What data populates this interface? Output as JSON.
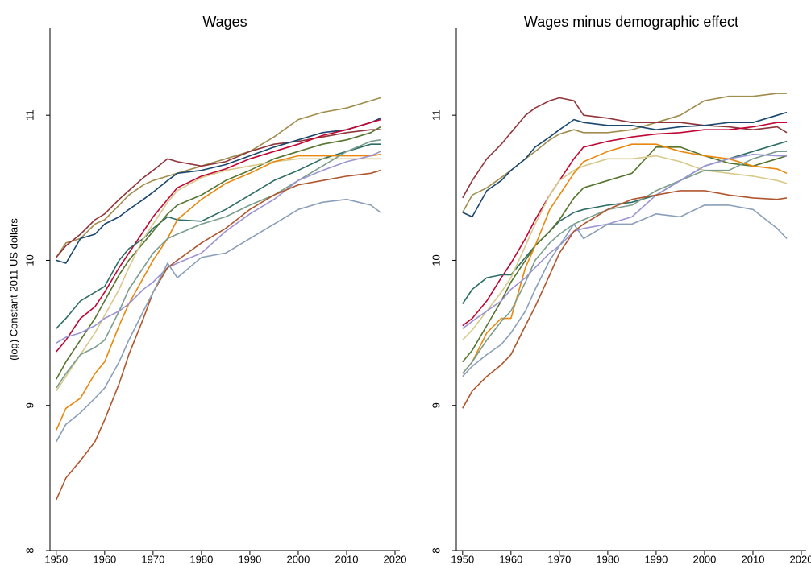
{
  "chart_data": [
    {
      "type": "line",
      "title": "Wages",
      "ylabel": "(log) Constant 2011 US dollars",
      "x": [
        1950,
        1952,
        1955,
        1958,
        1960,
        1963,
        1965,
        1968,
        1970,
        1973,
        1975,
        1980,
        1985,
        1990,
        1995,
        2000,
        2005,
        2010,
        2015,
        2017
      ],
      "xlim": [
        1948.7,
        2021
      ],
      "xticks": [
        1950,
        1960,
        1970,
        1980,
        1990,
        2000,
        2010,
        2020
      ],
      "ylim": [
        8,
        11.6
      ],
      "yticks": [
        8,
        9,
        10,
        11
      ],
      "series": [
        {
          "color": "#a08c4c",
          "values": [
            10.02,
            10.12,
            10.15,
            10.25,
            10.28,
            10.38,
            10.45,
            10.52,
            10.55,
            10.58,
            10.6,
            10.65,
            10.7,
            10.75,
            10.85,
            10.97,
            11.02,
            11.05,
            11.1,
            11.12
          ]
        },
        {
          "color": "#90353b",
          "values": [
            10.02,
            10.1,
            10.18,
            10.28,
            10.32,
            10.42,
            10.48,
            10.57,
            10.62,
            10.7,
            10.68,
            10.65,
            10.68,
            10.75,
            10.8,
            10.82,
            10.85,
            10.88,
            10.9,
            10.9
          ]
        },
        {
          "color": "#1a476f",
          "values": [
            10.0,
            9.98,
            10.15,
            10.18,
            10.25,
            10.3,
            10.35,
            10.42,
            10.47,
            10.55,
            10.6,
            10.62,
            10.66,
            10.72,
            10.78,
            10.83,
            10.88,
            10.9,
            10.95,
            10.98
          ]
        },
        {
          "color": "#c10534",
          "values": [
            9.37,
            9.45,
            9.6,
            9.68,
            9.78,
            9.95,
            10.05,
            10.2,
            10.3,
            10.42,
            10.5,
            10.58,
            10.63,
            10.7,
            10.75,
            10.8,
            10.86,
            10.9,
            10.95,
            10.97
          ]
        },
        {
          "color": "#2d6d66",
          "values": [
            9.53,
            9.6,
            9.72,
            9.78,
            9.82,
            10.0,
            10.08,
            10.15,
            10.22,
            10.3,
            10.28,
            10.27,
            10.35,
            10.45,
            10.55,
            10.62,
            10.7,
            10.75,
            10.8,
            10.8
          ]
        },
        {
          "color": "#55752f",
          "values": [
            9.18,
            9.3,
            9.45,
            9.6,
            9.72,
            9.9,
            10.0,
            10.12,
            10.2,
            10.32,
            10.38,
            10.45,
            10.55,
            10.62,
            10.7,
            10.75,
            10.8,
            10.83,
            10.88,
            10.92
          ]
        },
        {
          "color": "#d7c989",
          "values": [
            9.1,
            9.2,
            9.35,
            9.5,
            9.62,
            9.8,
            9.95,
            10.15,
            10.25,
            10.4,
            10.48,
            10.57,
            10.62,
            10.65,
            10.68,
            10.7,
            10.7,
            10.7,
            10.7,
            10.7
          ]
        },
        {
          "color": "#e8880e",
          "values": [
            8.83,
            8.98,
            9.05,
            9.22,
            9.3,
            9.55,
            9.7,
            9.88,
            10.0,
            10.15,
            10.28,
            10.42,
            10.53,
            10.6,
            10.68,
            10.72,
            10.72,
            10.72,
            10.72,
            10.73
          ]
        },
        {
          "color": "#7a9e8c",
          "values": [
            9.12,
            9.22,
            9.35,
            9.4,
            9.45,
            9.65,
            9.8,
            9.95,
            10.05,
            10.15,
            10.18,
            10.25,
            10.3,
            10.38,
            10.45,
            10.55,
            10.65,
            10.75,
            10.82,
            10.83
          ]
        },
        {
          "color": "#9b94d3",
          "values": [
            9.43,
            9.47,
            9.5,
            9.55,
            9.6,
            9.65,
            9.7,
            9.8,
            9.85,
            9.95,
            9.98,
            10.05,
            10.2,
            10.32,
            10.42,
            10.55,
            10.62,
            10.68,
            10.72,
            10.75
          ]
        },
        {
          "color": "#b0562e",
          "values": [
            8.35,
            8.5,
            8.62,
            8.75,
            8.9,
            9.15,
            9.35,
            9.6,
            9.78,
            9.95,
            10.0,
            10.12,
            10.22,
            10.35,
            10.45,
            10.52,
            10.55,
            10.58,
            10.6,
            10.62
          ]
        },
        {
          "color": "#8a9fb8",
          "values": [
            8.75,
            8.87,
            8.95,
            9.05,
            9.12,
            9.3,
            9.45,
            9.65,
            9.78,
            9.98,
            9.88,
            10.02,
            10.05,
            10.15,
            10.25,
            10.35,
            10.4,
            10.42,
            10.38,
            10.33
          ]
        }
      ]
    },
    {
      "type": "line",
      "title": "Wages minus demographic effect",
      "x": [
        1950,
        1952,
        1955,
        1958,
        1960,
        1963,
        1965,
        1968,
        1970,
        1973,
        1975,
        1980,
        1985,
        1990,
        1995,
        2000,
        2005,
        2010,
        2015,
        2017
      ],
      "xlim": [
        1948.7,
        2021
      ],
      "xticks": [
        1950,
        1960,
        1970,
        1980,
        1990,
        2000,
        2010,
        2020
      ],
      "ylim": [
        8,
        11.6
      ],
      "yticks": [
        8,
        9,
        10,
        11
      ],
      "series": [
        {
          "color": "#a08c4c",
          "values": [
            10.33,
            10.45,
            10.5,
            10.57,
            10.62,
            10.7,
            10.75,
            10.83,
            10.87,
            10.9,
            10.88,
            10.88,
            10.9,
            10.95,
            11.0,
            11.1,
            11.13,
            11.13,
            11.15,
            11.15
          ]
        },
        {
          "color": "#90353b",
          "values": [
            10.43,
            10.55,
            10.7,
            10.8,
            10.88,
            11.0,
            11.05,
            11.1,
            11.12,
            11.1,
            11.0,
            10.98,
            10.95,
            10.95,
            10.95,
            10.93,
            10.92,
            10.9,
            10.92,
            10.88
          ]
        },
        {
          "color": "#1a476f",
          "values": [
            10.33,
            10.3,
            10.48,
            10.55,
            10.62,
            10.7,
            10.78,
            10.85,
            10.9,
            10.97,
            10.95,
            10.93,
            10.93,
            10.9,
            10.92,
            10.93,
            10.95,
            10.95,
            11.0,
            11.02
          ]
        },
        {
          "color": "#c10534",
          "values": [
            9.55,
            9.6,
            9.72,
            9.88,
            9.98,
            10.15,
            10.28,
            10.45,
            10.55,
            10.7,
            10.78,
            10.82,
            10.85,
            10.87,
            10.88,
            10.9,
            10.9,
            10.92,
            10.95,
            10.95
          ]
        },
        {
          "color": "#2d6d66",
          "values": [
            9.7,
            9.8,
            9.88,
            9.9,
            9.9,
            10.02,
            10.1,
            10.2,
            10.27,
            10.33,
            10.35,
            10.38,
            10.4,
            10.45,
            10.55,
            10.65,
            10.7,
            10.75,
            10.8,
            10.82
          ]
        },
        {
          "color": "#55752f",
          "values": [
            9.3,
            9.38,
            9.55,
            9.72,
            9.85,
            10.0,
            10.1,
            10.2,
            10.28,
            10.43,
            10.5,
            10.55,
            10.6,
            10.78,
            10.78,
            10.72,
            10.67,
            10.65,
            10.7,
            10.72
          ]
        },
        {
          "color": "#d7c989",
          "values": [
            9.45,
            9.52,
            9.65,
            9.78,
            9.88,
            10.1,
            10.25,
            10.45,
            10.55,
            10.62,
            10.65,
            10.7,
            10.7,
            10.72,
            10.68,
            10.62,
            10.6,
            10.58,
            10.55,
            10.53
          ]
        },
        {
          "color": "#e8880e",
          "values": [
            9.22,
            9.3,
            9.5,
            9.6,
            9.6,
            9.95,
            10.1,
            10.35,
            10.45,
            10.6,
            10.68,
            10.75,
            10.8,
            10.8,
            10.75,
            10.72,
            10.7,
            10.65,
            10.63,
            10.6
          ]
        },
        {
          "color": "#7a9e8c",
          "values": [
            9.22,
            9.3,
            9.45,
            9.58,
            9.65,
            9.85,
            10.0,
            10.12,
            10.18,
            10.25,
            10.28,
            10.35,
            10.38,
            10.48,
            10.55,
            10.62,
            10.62,
            10.7,
            10.75,
            10.75
          ]
        },
        {
          "color": "#9b94d3",
          "values": [
            9.53,
            9.58,
            9.65,
            9.72,
            9.8,
            9.88,
            9.95,
            10.05,
            10.1,
            10.2,
            10.22,
            10.25,
            10.3,
            10.45,
            10.55,
            10.65,
            10.7,
            10.73,
            10.72,
            10.72
          ]
        },
        {
          "color": "#b0562e",
          "values": [
            8.98,
            9.1,
            9.2,
            9.28,
            9.35,
            9.55,
            9.68,
            9.9,
            10.05,
            10.2,
            10.25,
            10.35,
            10.42,
            10.45,
            10.48,
            10.48,
            10.45,
            10.43,
            10.42,
            10.43
          ]
        },
        {
          "color": "#8a9fb8",
          "values": [
            9.2,
            9.27,
            9.35,
            9.42,
            9.5,
            9.65,
            9.8,
            10.0,
            10.1,
            10.25,
            10.15,
            10.25,
            10.25,
            10.32,
            10.3,
            10.38,
            10.38,
            10.35,
            10.22,
            10.15
          ]
        }
      ]
    }
  ]
}
